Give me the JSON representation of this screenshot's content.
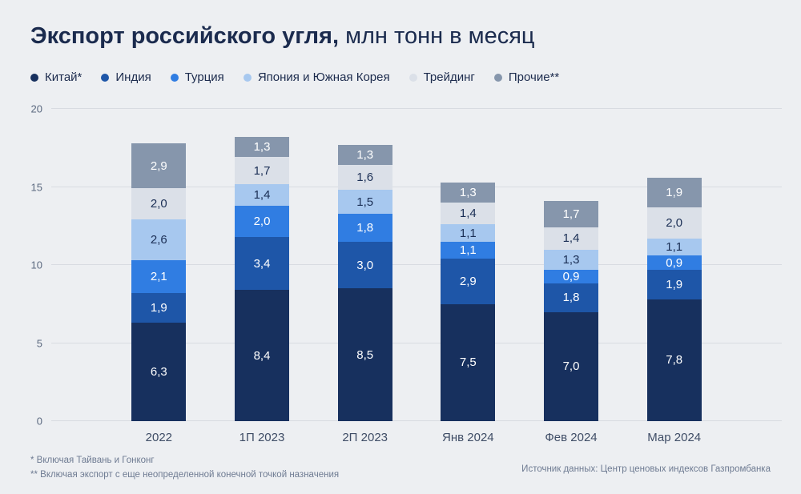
{
  "header": {
    "title_bold": "Экспорт российского угля,",
    "title_regular": " млн тонн в месяц"
  },
  "footnotes": {
    "line1": "* Включая Тайвань и Гонконг",
    "line2": "** Включая экспорт с еще неопределенной конечной точкой назначения",
    "source": "Источник данных: Центр ценовых индексов Газпромбанка"
  },
  "colors": {
    "background": "#edeff2",
    "gridline": "#d8dbe1",
    "title_text": "#1b2b4e",
    "axis_text": "#5c6a80",
    "footnote_text": "#6e7b92"
  },
  "chart_data": {
    "type": "bar",
    "stacked": true,
    "title": "Экспорт российского угля, млн тонн в месяц",
    "xlabel": "",
    "ylabel": "млн тонн в месяц",
    "ylim": [
      0,
      20
    ],
    "yticks": [
      0,
      5,
      10,
      15,
      20
    ],
    "grid": true,
    "legend_position": "top",
    "decimal_separator": ",",
    "categories": [
      "2022",
      "1П 2023",
      "2П 2023",
      "Янв 2024",
      "Фев 2024",
      "Мар 2024"
    ],
    "series": [
      {
        "name": "Китай*",
        "color": "#17305e",
        "label_color": "#ffffff",
        "values": [
          6.3,
          8.4,
          8.5,
          7.5,
          7.0,
          7.8
        ]
      },
      {
        "name": "Индия",
        "color": "#1e56a8",
        "label_color": "#ffffff",
        "values": [
          1.9,
          3.4,
          3.0,
          2.9,
          1.8,
          1.9
        ]
      },
      {
        "name": "Турция",
        "color": "#307de2",
        "label_color": "#ffffff",
        "values": [
          2.1,
          2.0,
          1.8,
          1.1,
          0.9,
          0.9
        ]
      },
      {
        "name": "Япония и Южная Корея",
        "color": "#a7c8ef",
        "label_color": "#1b2f55",
        "values": [
          2.6,
          1.4,
          1.5,
          1.1,
          1.3,
          1.1
        ]
      },
      {
        "name": "Трейдинг",
        "color": "#dbe0e8",
        "label_color": "#1b2f55",
        "values": [
          2.0,
          1.7,
          1.6,
          1.4,
          1.4,
          2.0
        ]
      },
      {
        "name": "Прочие**",
        "color": "#8696ac",
        "label_color": "#ffffff",
        "values": [
          2.9,
          1.3,
          1.3,
          1.3,
          1.7,
          1.9
        ]
      }
    ]
  }
}
